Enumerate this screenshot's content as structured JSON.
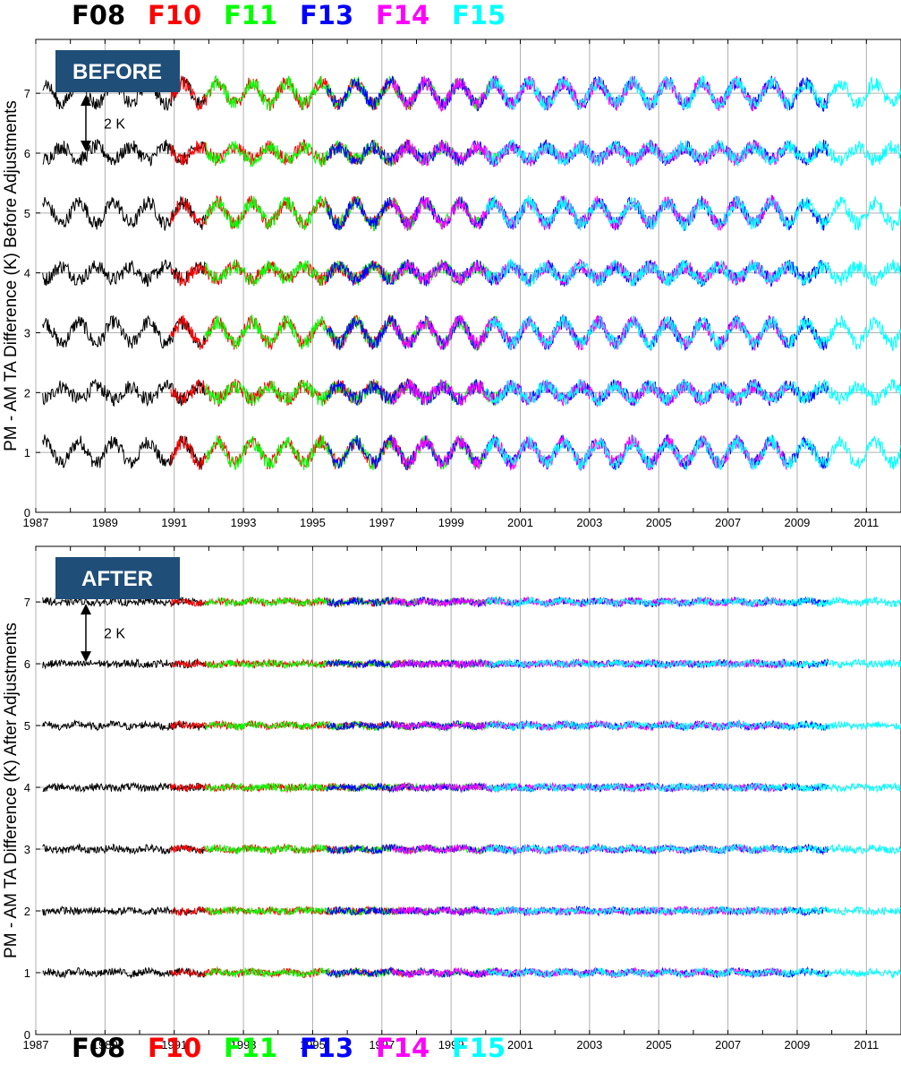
{
  "legend": [
    {
      "label": "F08",
      "color": "#000000"
    },
    {
      "label": "F10",
      "color": "#ff0000"
    },
    {
      "label": "F11",
      "color": "#00ff00"
    },
    {
      "label": "F13",
      "color": "#0000ff"
    },
    {
      "label": "F14",
      "color": "#ff00ff"
    },
    {
      "label": "F15",
      "color": "#00ffff"
    }
  ],
  "chart_data": [
    {
      "type": "line",
      "badge": "BEFORE",
      "ylabel": "PM - AM TA Difference (K) Before Adjustments",
      "scale_annotation": "2 K",
      "x_ticks": [
        "1987",
        "1989",
        "1991",
        "1993",
        "1995",
        "1997",
        "1999",
        "2001",
        "2003",
        "2005",
        "2007",
        "2009",
        "2011"
      ],
      "y_ticks": [
        "0",
        "1",
        "2",
        "3",
        "4",
        "5",
        "6",
        "7"
      ],
      "xlim": [
        1987,
        2012
      ],
      "ylim": [
        0,
        7.9
      ],
      "grid": true,
      "series": [
        {
          "name": "F08",
          "color": "#000000",
          "start": 1987.2,
          "end": 1991.9
        },
        {
          "name": "F10",
          "color": "#ff0000",
          "start": 1990.9,
          "end": 1997.9
        },
        {
          "name": "F11",
          "color": "#00ff00",
          "start": 1991.9,
          "end": 2000.4
        },
        {
          "name": "F13",
          "color": "#0000ff",
          "start": 1995.4,
          "end": 2009.9
        },
        {
          "name": "F14",
          "color": "#ff00ff",
          "start": 1997.3,
          "end": 2008.7
        },
        {
          "name": "F15",
          "color": "#00ffff",
          "start": 2000.0,
          "end": 2012.0
        }
      ]
    },
    {
      "type": "line",
      "badge": "AFTER",
      "ylabel": "PM - AM TA Difference (K) After Adjustments",
      "scale_annotation": "2 K",
      "x_ticks": [
        "1987",
        "1989",
        "1991",
        "1993",
        "1995",
        "1997",
        "1999",
        "2001",
        "2003",
        "2005",
        "2007",
        "2009",
        "2011"
      ],
      "y_ticks": [
        "0",
        "1",
        "2",
        "3",
        "4",
        "5",
        "6",
        "7"
      ],
      "xlim": [
        1987,
        2012
      ],
      "ylim": [
        0,
        7.9
      ],
      "grid": true,
      "series": [
        {
          "name": "F08",
          "color": "#000000",
          "start": 1987.2,
          "end": 1991.9
        },
        {
          "name": "F10",
          "color": "#ff0000",
          "start": 1990.9,
          "end": 1997.9
        },
        {
          "name": "F11",
          "color": "#00ff00",
          "start": 1991.9,
          "end": 2000.4
        },
        {
          "name": "F13",
          "color": "#0000ff",
          "start": 1995.4,
          "end": 2009.9
        },
        {
          "name": "F14",
          "color": "#ff00ff",
          "start": 1997.3,
          "end": 2008.7
        },
        {
          "name": "F15",
          "color": "#00ffff",
          "start": 2000.0,
          "end": 2012.0
        }
      ]
    }
  ]
}
